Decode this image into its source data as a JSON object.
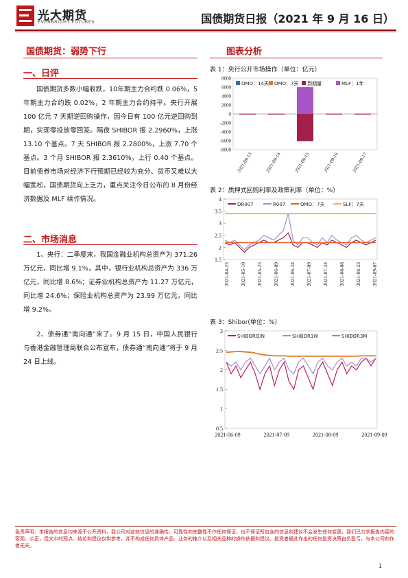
{
  "header": {
    "logo_cn": "光大期货",
    "logo_en": "EVERBRIGHT FUTURES",
    "title": "国债期货日报（2021 年 9 月 16 日）"
  },
  "left": {
    "main_title": "国债期货：弱势下行",
    "daily_heading": "一、日评",
    "daily_text": "国债期货多数小幅收跌，10年期主力合约跌 0.06%，5 年期主力合约跌 0.02%，2 年期主力合约持平。央行开展 100 亿元 7 天期逆回购操作，因今日有 100 亿元逆回购到期，实现零投放零回笼。隔夜 SHIBOR 报 2.2960%，上涨 13.10 个基点。7 天 SHIBOR 报 2.2800%，上涨 7.70 个基点。3 个月 SHIBOR 报 2.3610%，上行 0.40 个基点。目前债券市场对经济下行预期已经较为充分、货币又难以大幅宽松，国债期货向上乏力，重点关注今日公布的 8 月份经济数据及 MLF 续作情况。",
    "news_heading": "二、市场消息",
    "news_1": "1、央行：二季度末，我国金融业机构总资产为 371.26 万亿元，同比增 9.1%，其中，银行业机构总资产为 336 万亿元，同比增 8.6%；证券业机构总资产为 11.27 万亿元，同比增 24.6%；保险业机构总资产为 23.99 万亿元，同比增 9.2%。",
    "news_2": "2、债券通“南向通”来了。9 月 15 日，中国人民银行与香港金融管理局联合公布宣布，债券通“南向通”将于 9 月 24 日上线。"
  },
  "right": {
    "heading": "图表分析"
  },
  "charts": {
    "c1": {
      "caption": "表 1：央行公开市场操作（单位：亿元）",
      "series_colors": {
        "omo14": "#3a6fb0",
        "omo7": "#e07a25",
        "maturity": "#a2204a",
        "mlf1y": "#a855c8"
      }
    },
    "c2": {
      "caption": "表 2：质押式回购利率及政策利率（单位：%）",
      "series_colors": {
        "DR007": "#a2204a",
        "R007": "#a98ad4",
        "OMO7": "#e0622b",
        "SLF7": "#f0b84e"
      }
    },
    "c3": {
      "caption": "表 3：Shibor(单位：%)",
      "series_colors": {
        "on": "#b3245a",
        "w1": "#a98ad4",
        "m3": "#e07a25"
      }
    }
  },
  "chart_data": [
    {
      "type": "bar",
      "title": "表 1：央行公开市场操作（单位：亿元）",
      "categories": [
        "2021-09-13",
        "2021-09-14",
        "2021-09-15",
        "2021-09-16",
        "2021-09-17"
      ],
      "series": [
        {
          "name": "OMO：14天",
          "values": [
            0,
            0,
            0,
            0,
            0
          ]
        },
        {
          "name": "OMO：7天",
          "values": [
            100,
            100,
            100,
            100,
            100
          ]
        },
        {
          "name": "到期量",
          "values": [
            -100,
            -100,
            -6100,
            -100,
            -100
          ]
        },
        {
          "name": "MLF：1年",
          "values": [
            0,
            0,
            6000,
            0,
            0
          ]
        }
      ],
      "ylim": [
        -8000,
        8000
      ],
      "yticks": [
        8000,
        6000,
        4000,
        2000,
        0,
        -2000,
        -4000,
        -6000,
        -8000
      ],
      "legend": "top"
    },
    {
      "type": "line",
      "title": "表 2：质押式回购利率及政策利率（单位：%）",
      "x_ticks": [
        "2021-04-25",
        "2021-05-10",
        "2021-05-25",
        "2021-06-09",
        "2021-06-24",
        "2021-07-09",
        "2021-07-24",
        "2021-08-08",
        "2021-08-23",
        "2021-09-07"
      ],
      "series": [
        {
          "name": "DR007",
          "values": [
            2.2,
            2.1,
            2.2,
            2.0,
            1.8,
            2.0,
            2.1,
            2.2,
            2.3,
            2.2,
            2.2,
            2.3,
            2.4,
            2.6,
            2.1,
            2.0,
            2.2,
            2.2,
            2.1,
            2.0,
            2.2,
            2.1,
            2.3,
            2.2,
            2.1,
            2.0,
            2.2,
            2.3,
            2.2,
            2.1,
            2.2,
            2.3
          ]
        },
        {
          "name": "R007",
          "values": [
            2.3,
            2.2,
            2.3,
            2.1,
            1.9,
            2.1,
            2.2,
            2.3,
            2.5,
            2.4,
            2.3,
            2.5,
            2.7,
            3.4,
            2.3,
            2.1,
            2.4,
            2.4,
            2.2,
            2.1,
            2.4,
            2.2,
            2.5,
            2.3,
            2.2,
            2.1,
            2.4,
            2.5,
            2.3,
            2.2,
            2.3,
            2.4
          ]
        },
        {
          "name": "OMO：7天",
          "values": [
            2.2,
            2.2,
            2.2,
            2.2,
            2.2,
            2.2,
            2.2,
            2.2,
            2.2,
            2.2,
            2.2,
            2.2,
            2.2,
            2.2,
            2.2,
            2.2,
            2.2,
            2.2,
            2.2,
            2.2,
            2.2,
            2.2,
            2.2,
            2.2,
            2.2,
            2.2,
            2.2,
            2.2,
            2.2,
            2.2,
            2.2,
            2.2
          ]
        },
        {
          "name": "SLF：7天",
          "values": [
            3.4,
            3.4,
            3.4,
            3.4,
            3.4,
            3.4,
            3.4,
            3.4,
            3.4,
            3.4,
            3.4,
            3.4,
            3.4,
            3.4,
            3.4,
            3.4,
            3.4,
            3.4,
            3.4,
            3.4,
            3.4,
            3.4,
            3.4,
            3.4,
            3.4,
            3.4,
            3.4,
            3.4,
            3.4,
            3.4,
            3.4,
            3.4
          ]
        }
      ],
      "ylim": [
        1.5,
        4
      ],
      "yticks": [
        4,
        3.5,
        3,
        2.5,
        2,
        1.5
      ],
      "legend": "top"
    },
    {
      "type": "line",
      "title": "表 3：Shibor(单位：%)",
      "x_ticks": [
        "2021-06-09",
        "2021-07-09",
        "2021-08-09",
        "2021-09-09"
      ],
      "series": [
        {
          "name": "SHIBORO/N",
          "values": [
            2.2,
            1.9,
            2.1,
            1.8,
            2.0,
            2.2,
            1.9,
            1.5,
            1.9,
            2.1,
            1.6,
            2.0,
            2.2,
            1.7,
            1.5,
            2.0,
            2.1,
            1.8,
            1.5,
            2.0,
            2.2,
            1.9,
            1.6,
            2.0,
            2.2,
            1.9,
            2.1,
            2.0,
            2.2,
            2.3,
            2.1,
            2.3
          ]
        },
        {
          "name": "SHIBOR1W",
          "values": [
            2.2,
            2.1,
            2.2,
            2.0,
            2.2,
            2.3,
            2.1,
            1.9,
            2.1,
            2.3,
            2.0,
            2.2,
            2.3,
            2.0,
            1.9,
            2.2,
            2.3,
            2.1,
            1.9,
            2.2,
            2.3,
            2.1,
            2.0,
            2.2,
            2.3,
            2.1,
            2.2,
            2.1,
            2.3,
            2.3,
            2.2,
            2.3
          ]
        },
        {
          "name": "SHIBOR3M",
          "values": [
            2.45,
            2.46,
            2.47,
            2.47,
            2.46,
            2.45,
            2.43,
            2.4,
            2.38,
            2.37,
            2.36,
            2.36,
            2.36,
            2.35,
            2.35,
            2.35,
            2.35,
            2.35,
            2.35,
            2.35,
            2.35,
            2.35,
            2.35,
            2.35,
            2.35,
            2.35,
            2.35,
            2.35,
            2.36,
            2.36,
            2.36,
            2.36
          ]
        }
      ],
      "ylim": [
        0.5,
        3
      ],
      "yticks": [
        3,
        2.5,
        2,
        1.5,
        1,
        0.5
      ],
      "legend": "top"
    }
  ],
  "footer": {
    "disclaimer": "免责声明：本报告的信息均来源于公开资料，我公司对这些信息的准确性、可靠性和完整性不作任何保证，也不保证所包含的信息和建议不会发生任何变更，我们已力求报告内容的客观、公正，但文中的观点、结论和建议仅供参考，并不构成任何具体产品、业务的推介以及相关品种的操作依据和建议。投资者据此作出的任何投资决策自负盈亏，与本公司和作者无关。",
    "page_number": "1"
  }
}
